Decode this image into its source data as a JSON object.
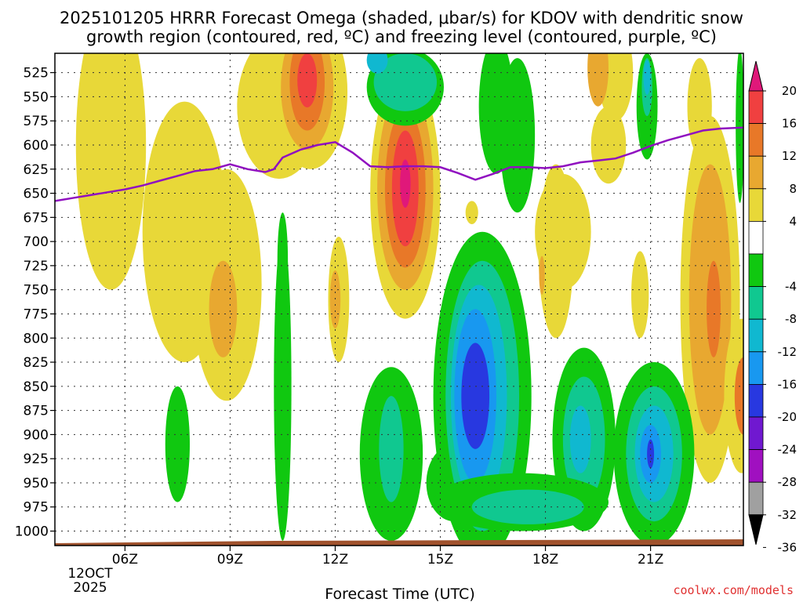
{
  "colors": {
    "warm": [
      "#e8d838",
      "#e8a830",
      "#e87828",
      "#f04040",
      "#e0187a"
    ],
    "cold": [
      "#10c810",
      "#10c890",
      "#10b8d0",
      "#1898f0",
      "#2838e0",
      "#7018d0",
      "#a010c0",
      "#a0a0a0",
      "#000000"
    ],
    "freezing_line": "#9010c0",
    "ground": "#a0522d",
    "credit": "#e03030"
  },
  "chart_data": {
    "type": "heatmap",
    "title_line1": "2025101205 HRRR Forecast Omega (shaded, μbar/s) for KDOV with dendritic snow",
    "title_line2": "growth region (contoured, red, ºC) and freezing level (contoured, purple, ºC)",
    "xlabel": "Forecast Time (UTC)",
    "ylabel": "",
    "credit": "coolwx.com/models",
    "date_label_line1": "12OCT",
    "date_label_line2": "2025",
    "x_range_hours": [
      4.0,
      23.65
    ],
    "y_range_hpa": [
      505,
      1015
    ],
    "x_ticks": [
      {
        "h": 6,
        "label": "06Z"
      },
      {
        "h": 9,
        "label": "09Z"
      },
      {
        "h": 12,
        "label": "12Z"
      },
      {
        "h": 15,
        "label": "15Z"
      },
      {
        "h": 18,
        "label": "18Z"
      },
      {
        "h": 21,
        "label": "21Z"
      }
    ],
    "y_ticks": [
      {
        "p": 525,
        "label": "525"
      },
      {
        "p": 550,
        "label": "550"
      },
      {
        "p": 575,
        "label": "575"
      },
      {
        "p": 600,
        "label": "600"
      },
      {
        "p": 625,
        "label": "625"
      },
      {
        "p": 650,
        "label": "650"
      },
      {
        "p": 675,
        "label": "675"
      },
      {
        "p": 700,
        "label": "700"
      },
      {
        "p": 725,
        "label": "725"
      },
      {
        "p": 750,
        "label": "750"
      },
      {
        "p": 775,
        "label": "775"
      },
      {
        "p": 800,
        "label": "800"
      },
      {
        "p": 825,
        "label": "825"
      },
      {
        "p": 850,
        "label": "850"
      },
      {
        "p": 875,
        "label": "875"
      },
      {
        "p": 900,
        "label": "900"
      },
      {
        "p": 925,
        "label": "925"
      },
      {
        "p": 950,
        "label": "950"
      },
      {
        "p": 975,
        "label": "975"
      },
      {
        "p": 1000,
        "label": "1000"
      }
    ],
    "colorbar": {
      "warm_ticks": [
        "20",
        "16",
        "12",
        "8",
        "4"
      ],
      "cold_ticks": [
        "-4",
        "-8",
        "-12",
        "-16",
        "-20",
        "-24",
        "-28",
        "-32",
        "-36"
      ]
    },
    "freezing_level": {
      "hours": [
        4.0,
        4.5,
        5.0,
        5.5,
        6.0,
        6.5,
        7.0,
        7.5,
        8.0,
        8.5,
        9.0,
        9.5,
        10.0,
        10.25,
        10.5,
        11.0,
        11.5,
        12.0,
        12.5,
        13.0,
        13.5,
        14.0,
        14.5,
        15.0,
        15.5,
        16.0,
        16.5,
        17.0,
        17.5,
        18.0,
        18.5,
        19.0,
        19.5,
        20.0,
        20.5,
        21.0,
        21.5,
        22.0,
        22.5,
        23.0,
        23.65
      ],
      "hpa": [
        658,
        655,
        652,
        649,
        646,
        642,
        637,
        632,
        627,
        625,
        620,
        625,
        628,
        625,
        613,
        605,
        600,
        597,
        608,
        622,
        623,
        622,
        622,
        623,
        629,
        636,
        630,
        623,
        623,
        624,
        622,
        618,
        616,
        614,
        608,
        601,
        595,
        590,
        585,
        583,
        582
      ]
    },
    "omega_regions": [
      {
        "h": 5.8,
        "p": 630,
        "rh": 0.75,
        "rp": 75,
        "v": 5.5
      },
      {
        "h": 6.0,
        "p": 625,
        "rh": 0.28,
        "rp": 30,
        "v": 9
      },
      {
        "h": 5.6,
        "p": 600,
        "rh": 1.0,
        "rp": 150,
        "v": 4.5
      },
      {
        "h": 7.7,
        "p": 690,
        "rh": 1.2,
        "rp": 135,
        "v": 4.5
      },
      {
        "h": 8.9,
        "p": 745,
        "rh": 1.0,
        "rp": 120,
        "v": 5.0
      },
      {
        "h": 8.8,
        "p": 770,
        "rh": 0.4,
        "rp": 50,
        "v": 9
      },
      {
        "h": 10.4,
        "p": 560,
        "rh": 1.2,
        "rp": 75,
        "v": 4.5
      },
      {
        "h": 11.3,
        "p": 545,
        "rh": 1.05,
        "rp": 80,
        "v": 7
      },
      {
        "h": 11.2,
        "p": 540,
        "rh": 0.75,
        "rp": 65,
        "v": 11
      },
      {
        "h": 11.2,
        "p": 535,
        "rh": 0.5,
        "rp": 50,
        "v": 15
      },
      {
        "h": 11.2,
        "p": 533,
        "rh": 0.28,
        "rp": 28,
        "v": 17
      },
      {
        "h": 12.1,
        "p": 760,
        "rh": 0.3,
        "rp": 65,
        "v": 5.5
      },
      {
        "h": 12.0,
        "p": 760,
        "rh": 0.15,
        "rp": 30,
        "v": 9
      },
      {
        "h": 14.0,
        "p": 650,
        "rh": 1.0,
        "rp": 130,
        "v": 4.5
      },
      {
        "h": 14.0,
        "p": 645,
        "rh": 0.8,
        "rp": 105,
        "v": 8
      },
      {
        "h": 14.0,
        "p": 645,
        "rh": 0.58,
        "rp": 82,
        "v": 12
      },
      {
        "h": 14.0,
        "p": 645,
        "rh": 0.38,
        "rp": 60,
        "v": 16
      },
      {
        "h": 14.0,
        "p": 640,
        "rh": 0.15,
        "rp": 25,
        "v": 22
      },
      {
        "h": 15.9,
        "p": 670,
        "rh": 0.18,
        "rp": 12,
        "v": 5
      },
      {
        "h": 18.5,
        "p": 690,
        "rh": 0.8,
        "rp": 60,
        "v": 4.5
      },
      {
        "h": 18.3,
        "p": 710,
        "rh": 0.5,
        "rp": 90,
        "v": 5
      },
      {
        "h": 17.9,
        "p": 735,
        "rh": 0.08,
        "rp": 20,
        "v": 9
      },
      {
        "h": 19.8,
        "p": 600,
        "rh": 0.5,
        "rp": 40,
        "v": 4.5
      },
      {
        "h": 20.7,
        "p": 755,
        "rh": 0.25,
        "rp": 45,
        "v": 5
      },
      {
        "h": 20.0,
        "p": 525,
        "rh": 0.5,
        "rp": 50,
        "v": 5
      },
      {
        "h": 19.5,
        "p": 520,
        "rh": 0.3,
        "rp": 40,
        "v": 9
      },
      {
        "h": 22.7,
        "p": 760,
        "rh": 0.85,
        "rp": 190,
        "v": 5
      },
      {
        "h": 22.7,
        "p": 760,
        "rh": 0.6,
        "rp": 140,
        "v": 9
      },
      {
        "h": 22.8,
        "p": 770,
        "rh": 0.2,
        "rp": 50,
        "v": 13
      },
      {
        "h": 22.4,
        "p": 560,
        "rh": 0.35,
        "rp": 50,
        "v": 5
      },
      {
        "h": 23.6,
        "p": 860,
        "rh": 0.5,
        "rp": 80,
        "v": 7
      },
      {
        "h": 23.65,
        "p": 860,
        "rh": 0.25,
        "rp": 40,
        "v": 13
      },
      {
        "h": 14.0,
        "p": 540,
        "rh": 1.1,
        "rp": 40,
        "v": -5
      },
      {
        "h": 14.0,
        "p": 535,
        "rh": 0.9,
        "rp": 30,
        "v": -9
      },
      {
        "h": 13.2,
        "p": 512,
        "rh": 0.3,
        "rp": 14,
        "v": -13
      },
      {
        "h": 16.6,
        "p": 560,
        "rh": 0.5,
        "rp": 70,
        "v": -5
      },
      {
        "h": 17.2,
        "p": 590,
        "rh": 0.5,
        "rp": 80,
        "v": -5
      },
      {
        "h": 20.9,
        "p": 560,
        "rh": 0.3,
        "rp": 55,
        "v": -5
      },
      {
        "h": 20.9,
        "p": 540,
        "rh": 0.15,
        "rp": 30,
        "v": -9
      },
      {
        "h": 20.9,
        "p": 530,
        "rh": 0.1,
        "rp": 18,
        "v": -13
      },
      {
        "h": 23.55,
        "p": 580,
        "rh": 0.12,
        "rp": 80,
        "v": -5
      },
      {
        "h": 10.5,
        "p": 850,
        "rh": 0.25,
        "rp": 160,
        "v": -5
      },
      {
        "h": 10.5,
        "p": 720,
        "rh": 0.15,
        "rp": 50,
        "v": -5
      },
      {
        "h": 7.5,
        "p": 910,
        "rh": 0.35,
        "rp": 60,
        "v": -5
      },
      {
        "h": 13.6,
        "p": 920,
        "rh": 0.9,
        "rp": 90,
        "v": -5
      },
      {
        "h": 13.6,
        "p": 915,
        "rh": 0.35,
        "rp": 55,
        "v": -9
      },
      {
        "h": 15.4,
        "p": 950,
        "rh": 0.8,
        "rp": 40,
        "v": -5
      },
      {
        "h": 16.2,
        "p": 860,
        "rh": 1.4,
        "rp": 170,
        "v": -5
      },
      {
        "h": 16.2,
        "p": 860,
        "rh": 1.05,
        "rp": 140,
        "v": -9
      },
      {
        "h": 16.1,
        "p": 860,
        "rh": 0.8,
        "rp": 115,
        "v": -13
      },
      {
        "h": 16.0,
        "p": 860,
        "rh": 0.6,
        "rp": 90,
        "v": -17
      },
      {
        "h": 16.0,
        "p": 860,
        "rh": 0.4,
        "rp": 55,
        "v": -21
      },
      {
        "h": 19.1,
        "p": 905,
        "rh": 0.9,
        "rp": 95,
        "v": -5
      },
      {
        "h": 19.1,
        "p": 905,
        "rh": 0.6,
        "rp": 65,
        "v": -9
      },
      {
        "h": 19.0,
        "p": 905,
        "rh": 0.3,
        "rp": 35,
        "v": -13
      },
      {
        "h": 21.1,
        "p": 920,
        "rh": 1.15,
        "rp": 95,
        "v": -5
      },
      {
        "h": 21.1,
        "p": 920,
        "rh": 0.8,
        "rp": 70,
        "v": -9
      },
      {
        "h": 21.1,
        "p": 920,
        "rh": 0.55,
        "rp": 50,
        "v": -13
      },
      {
        "h": 21.0,
        "p": 920,
        "rh": 0.3,
        "rp": 30,
        "v": -17
      },
      {
        "h": 21.0,
        "p": 920,
        "rh": 0.1,
        "rp": 15,
        "v": -22
      },
      {
        "h": 17.3,
        "p": 970,
        "rh": 2.5,
        "rp": 30,
        "v": -5
      },
      {
        "h": 17.5,
        "p": 975,
        "rh": 1.6,
        "rp": 18,
        "v": -9
      }
    ]
  }
}
